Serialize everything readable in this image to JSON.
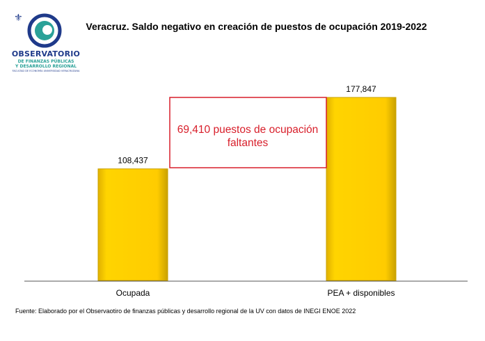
{
  "logo": {
    "name": "OBSERVATORIO",
    "line1": "DE FINANZAS PÚBLICAS",
    "line2": "Y DESARROLLO REGIONAL",
    "line3": "FACULTAD DE ECONOMÍA UNIVERSIDAD VERACRUZANA"
  },
  "chart_data": {
    "type": "bar",
    "title": "Veracruz.  Saldo negativo en creación de puestos de ocupación 2019-2022",
    "categories": [
      "Ocupada",
      "PEA + disponibles"
    ],
    "values": [
      108437,
      177847
    ],
    "value_labels": [
      "108,437",
      "177,847"
    ],
    "annotation": {
      "line1": "69,410 puestos de ocupación",
      "line2": "faltantes"
    },
    "colors": {
      "bar": "#FFCC00",
      "bar_dark": "#C9A100",
      "annotation_border": "#D81E2A",
      "annotation_text": "#D81E2A"
    },
    "grid": false,
    "legend": "none"
  },
  "source": "Fuente: Elaborado por el Observaotiro de finanzas públicas y desarrollo regional de la UV con datos de INEGI ENOE 2022"
}
